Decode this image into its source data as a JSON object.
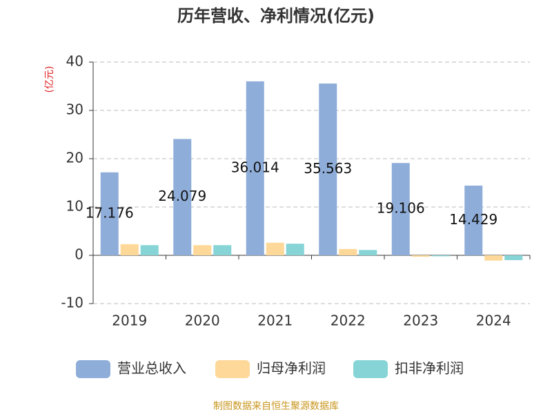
{
  "chart_data": {
    "type": "bar",
    "title": "历年营收、净利情况(亿元)",
    "y_label": "(亿元)",
    "source": "制图数据来自恒生聚源数据库",
    "categories": [
      "2019",
      "2020",
      "2021",
      "2022",
      "2023",
      "2024"
    ],
    "series": [
      {
        "name": "营业总收入",
        "color": "#8eadd9",
        "values": [
          17.176,
          24.079,
          36.014,
          35.563,
          19.106,
          14.429
        ],
        "labels": true
      },
      {
        "name": "归母净利润",
        "color": "#fdd898",
        "values": [
          2.3,
          2.1,
          2.6,
          1.3,
          -0.3,
          -1.1
        ]
      },
      {
        "name": "扣非净利润",
        "color": "#86d4d6",
        "values": [
          2.1,
          2.1,
          2.4,
          1.1,
          -0.2,
          -1.0
        ]
      }
    ],
    "ylim": [
      -10,
      40
    ],
    "yticks": [
      -10,
      0,
      10,
      20,
      30,
      40
    ],
    "grid": true
  }
}
